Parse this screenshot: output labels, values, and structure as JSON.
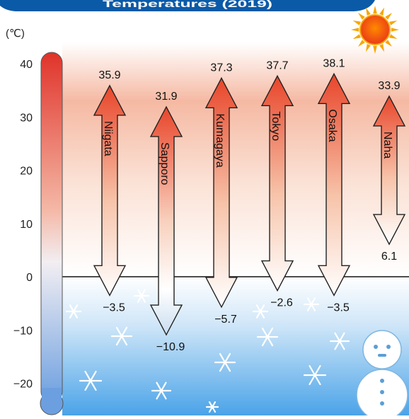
{
  "header": {
    "title": "Temperatures (2019)"
  },
  "unit_label": "(℃)",
  "colors": {
    "hot": "#e8452a",
    "warm_band": "#f6c2a8",
    "cold_band": "#5aa8e6",
    "banner": "#0a5aa8",
    "sun": "#f7a600",
    "thermo_top": "#e0332a",
    "thermo_bottom": "#6c9fe0"
  },
  "icons": {
    "sun": "sun-icon",
    "snowman": "snowman-icon",
    "snowflake": "snowflake-icon",
    "thermometer": "thermometer-icon"
  },
  "chart_data": {
    "type": "range-arrow",
    "title": "Temperatures (2019)",
    "ylabel": "(℃)",
    "ylim": [
      -20,
      40
    ],
    "yticks": [
      "40",
      "30",
      "20",
      "10",
      "0",
      "−10",
      "−20"
    ],
    "ytick_values": [
      40,
      30,
      20,
      10,
      0,
      -10,
      -20
    ],
    "zero_line": true,
    "series": [
      {
        "name": "Niigata",
        "max": 35.9,
        "min": -3.5,
        "max_label": "35.9",
        "min_label": "−3.5"
      },
      {
        "name": "Sapporo",
        "max": 31.9,
        "min": -10.9,
        "max_label": "31.9",
        "min_label": "−10.9"
      },
      {
        "name": "Kumagaya",
        "max": 37.3,
        "min": -5.7,
        "max_label": "37.3",
        "min_label": "−5.7"
      },
      {
        "name": "Tokyo",
        "max": 37.7,
        "min": -2.6,
        "max_label": "37.7",
        "min_label": "−2.6"
      },
      {
        "name": "Osaka",
        "max": 38.1,
        "min": -3.5,
        "max_label": "38.1",
        "min_label": "−3.5"
      },
      {
        "name": "Naha",
        "max": 33.9,
        "min": 6.1,
        "max_label": "33.9",
        "min_label": "6.1"
      }
    ]
  }
}
